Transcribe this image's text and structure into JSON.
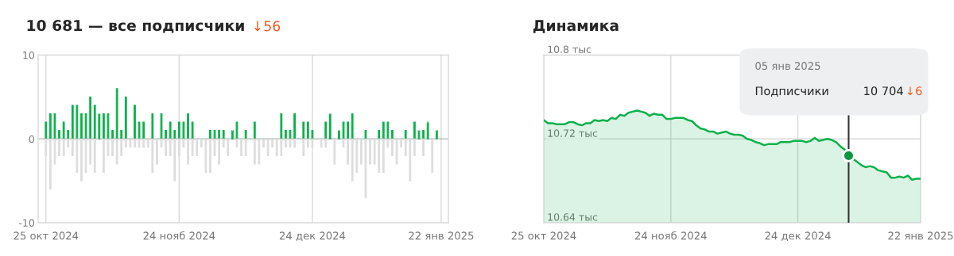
{
  "chart_data": [
    {
      "type": "bar",
      "title": "10 681 — все подписчики",
      "subtitle": "↓56",
      "x": [
        "2024-10-25",
        "2024-10-26",
        "2024-10-27",
        "2024-10-28",
        "2024-10-29",
        "2024-10-30",
        "2024-10-31",
        "2024-11-01",
        "2024-11-02",
        "2024-11-03",
        "2024-11-04",
        "2024-11-05",
        "2024-11-06",
        "2024-11-07",
        "2024-11-08",
        "2024-11-09",
        "2024-11-10",
        "2024-11-11",
        "2024-11-12",
        "2024-11-13",
        "2024-11-14",
        "2024-11-15",
        "2024-11-16",
        "2024-11-17",
        "2024-11-18",
        "2024-11-19",
        "2024-11-20",
        "2024-11-21",
        "2024-11-22",
        "2024-11-23",
        "2024-11-24",
        "2024-11-25",
        "2024-11-26",
        "2024-11-27",
        "2024-11-28",
        "2024-11-29",
        "2024-11-30",
        "2024-12-01",
        "2024-12-02",
        "2024-12-03",
        "2024-12-04",
        "2024-12-05",
        "2024-12-06",
        "2024-12-07",
        "2024-12-08",
        "2024-12-09",
        "2024-12-10",
        "2024-12-11",
        "2024-12-12",
        "2024-12-13",
        "2024-12-14",
        "2024-12-15",
        "2024-12-16",
        "2024-12-17",
        "2024-12-18",
        "2024-12-19",
        "2024-12-20",
        "2024-12-21",
        "2024-12-22",
        "2024-12-23",
        "2024-12-24",
        "2024-12-25",
        "2024-12-26",
        "2024-12-27",
        "2024-12-28",
        "2024-12-29",
        "2024-12-30",
        "2024-12-31",
        "2025-01-01",
        "2025-01-02",
        "2025-01-03",
        "2025-01-04",
        "2025-01-05",
        "2025-01-06",
        "2025-01-07",
        "2025-01-08",
        "2025-01-09",
        "2025-01-10",
        "2025-01-11",
        "2025-01-12",
        "2025-01-13",
        "2025-01-14",
        "2025-01-15",
        "2025-01-16",
        "2025-01-17",
        "2025-01-18",
        "2025-01-19",
        "2025-01-20",
        "2025-01-21",
        "2025-01-22"
      ],
      "series": [
        {
          "color": "#0db14b",
          "values": [
            2,
            3,
            3,
            1,
            2,
            1,
            4,
            4,
            3,
            3,
            5,
            4,
            3,
            3,
            3,
            1,
            6,
            1,
            5,
            0,
            4,
            2,
            2,
            0,
            3,
            0,
            3,
            1,
            2,
            1,
            2,
            2,
            3,
            2,
            0,
            0,
            0,
            1,
            1,
            1,
            1,
            0,
            1,
            2,
            0,
            1,
            0,
            2,
            0,
            0,
            0,
            0,
            0,
            3,
            1,
            1,
            3,
            0,
            2,
            2,
            1,
            0,
            0,
            2,
            3,
            0,
            1,
            2,
            2,
            3,
            0,
            0,
            1,
            0,
            0,
            1,
            2,
            2,
            1,
            0,
            0,
            1,
            0,
            2,
            1,
            1,
            2,
            0,
            1,
            0
          ]
        },
        {
          "color": "#dddddd",
          "values": [
            -2,
            -6,
            -3,
            -2,
            -2,
            -1,
            -2,
            -4,
            -5,
            -4,
            -3,
            -4,
            0,
            -4,
            -2,
            -2,
            -3,
            -2,
            -1,
            -1,
            -1,
            -1,
            -1,
            -1,
            -4,
            -3,
            -1,
            -2,
            -2,
            -5,
            -2,
            -1,
            -3,
            -2,
            -2,
            -1,
            -4,
            -4,
            -2,
            -3,
            -1,
            -2,
            0,
            -1,
            -2,
            -2,
            0,
            -3,
            -3,
            -1,
            -2,
            -1,
            -2,
            -2,
            -1,
            -1,
            -1,
            0,
            -2,
            -1,
            -1,
            0,
            -1,
            -1,
            0,
            -3,
            0,
            -1,
            -3,
            -5,
            -4,
            -3,
            -7,
            -3,
            -3,
            -4,
            -4,
            -1,
            -2,
            -3,
            -1,
            -2,
            -5,
            -2,
            0,
            -2,
            0,
            -4,
            0,
            0
          ]
        }
      ],
      "xlim": [
        "2024-10-23T06:00",
        "2025-01-23T15:00"
      ],
      "xticks": [
        {
          "value": "2024-10-25",
          "label": "25 окт 2024"
        },
        {
          "value": "2024-11-24",
          "label": "24 нояб 2024"
        },
        {
          "value": "2024-12-24",
          "label": "24 дек 2024"
        },
        {
          "value": "2025-01-22",
          "label": "22 янв 2025"
        }
      ],
      "ylim": [
        -10,
        10
      ],
      "yticks": [
        -10,
        0,
        10
      ],
      "grid": "x",
      "legend": false,
      "stacked": true,
      "ref_lines": [
        {
          "axis": "y",
          "value": 0,
          "color": "#d0d0d0"
        }
      ]
    },
    {
      "type": "area",
      "title": "Динамика",
      "x": [
        "2024-10-25",
        "2024-10-26",
        "2024-10-27",
        "2024-10-28",
        "2024-10-29",
        "2024-10-30",
        "2024-10-31",
        "2024-11-01",
        "2024-11-02",
        "2024-11-03",
        "2024-11-04",
        "2024-11-05",
        "2024-11-06",
        "2024-11-07",
        "2024-11-08",
        "2024-11-09",
        "2024-11-10",
        "2024-11-11",
        "2024-11-12",
        "2024-11-13",
        "2024-11-14",
        "2024-11-15",
        "2024-11-16",
        "2024-11-17",
        "2024-11-18",
        "2024-11-19",
        "2024-11-20",
        "2024-11-21",
        "2024-11-22",
        "2024-11-23",
        "2024-11-24",
        "2024-11-25",
        "2024-11-26",
        "2024-11-27",
        "2024-11-28",
        "2024-11-29",
        "2024-11-30",
        "2024-12-01",
        "2024-12-02",
        "2024-12-03",
        "2024-12-04",
        "2024-12-05",
        "2024-12-06",
        "2024-12-07",
        "2024-12-08",
        "2024-12-09",
        "2024-12-10",
        "2024-12-11",
        "2024-12-12",
        "2024-12-13",
        "2024-12-14",
        "2024-12-15",
        "2024-12-16",
        "2024-12-17",
        "2024-12-18",
        "2024-12-19",
        "2024-12-20",
        "2024-12-21",
        "2024-12-22",
        "2024-12-23",
        "2024-12-24",
        "2024-12-25",
        "2024-12-26",
        "2024-12-27",
        "2024-12-28",
        "2024-12-29",
        "2024-12-30",
        "2024-12-31",
        "2025-01-01",
        "2025-01-02",
        "2025-01-03",
        "2025-01-04",
        "2025-01-05",
        "2025-01-06",
        "2025-01-07",
        "2025-01-08",
        "2025-01-09",
        "2025-01-10",
        "2025-01-11",
        "2025-01-12",
        "2025-01-13",
        "2025-01-14",
        "2025-01-15",
        "2025-01-16",
        "2025-01-17",
        "2025-01-18",
        "2025-01-19",
        "2025-01-20",
        "2025-01-21",
        "2025-01-22"
      ],
      "series": [
        {
          "color": "#0db14b",
          "values": [
            10.738,
            10.735,
            10.735,
            10.734,
            10.734,
            10.734,
            10.736,
            10.736,
            10.734,
            10.733,
            10.735,
            10.735,
            10.738,
            10.737,
            10.738,
            10.737,
            10.74,
            10.739,
            10.743,
            10.742,
            10.745,
            10.746,
            10.747,
            10.746,
            10.745,
            10.742,
            10.744,
            10.743,
            10.743,
            10.739,
            10.739,
            10.74,
            10.74,
            10.74,
            10.738,
            10.737,
            10.733,
            10.73,
            10.729,
            10.727,
            10.727,
            10.725,
            10.726,
            10.727,
            10.725,
            10.724,
            10.724,
            10.723,
            10.72,
            10.719,
            10.717,
            10.716,
            10.714,
            10.715,
            10.715,
            10.715,
            10.717,
            10.717,
            10.717,
            10.718,
            10.718,
            10.718,
            10.717,
            10.718,
            10.721,
            10.718,
            10.719,
            10.72,
            10.719,
            10.717,
            10.713,
            10.71,
            10.704,
            10.701,
            10.698,
            10.695,
            10.693,
            10.694,
            10.693,
            10.69,
            10.689,
            10.688,
            10.683,
            10.683,
            10.684,
            10.683,
            10.685,
            10.681,
            10.682,
            10.682
          ]
        },
        {
          "type": "scatter",
          "marker": "circle",
          "color": "#08993f",
          "x": [
            "2025-01-05"
          ],
          "values": [
            10.704
          ]
        }
      ],
      "xlim": [
        "2024-10-25",
        "2025-01-22"
      ],
      "xticks": [
        {
          "value": "2024-10-25",
          "label": "25 окт 2024"
        },
        {
          "value": "2024-11-24",
          "label": "24 нояб 2024"
        },
        {
          "value": "2024-12-24",
          "label": "24 дек 2024"
        },
        {
          "value": "2025-01-22",
          "label": "22 янв 2025"
        }
      ],
      "ylim": [
        10.64,
        10.8
      ],
      "yticks": [
        {
          "value": 10.64,
          "label": "10.64 тыс"
        },
        {
          "value": 10.72,
          "label": "10.72 тыс"
        },
        {
          "value": 10.8,
          "label": "10.8 тыс"
        }
      ],
      "grid": true,
      "legend": false,
      "ref_lines": [
        {
          "axis": "x",
          "value": "2025-01-05",
          "color": "#333333"
        }
      ],
      "annotations": [
        "05 янв 2025",
        "Подписчики",
        "10 704",
        "↓6"
      ]
    }
  ]
}
